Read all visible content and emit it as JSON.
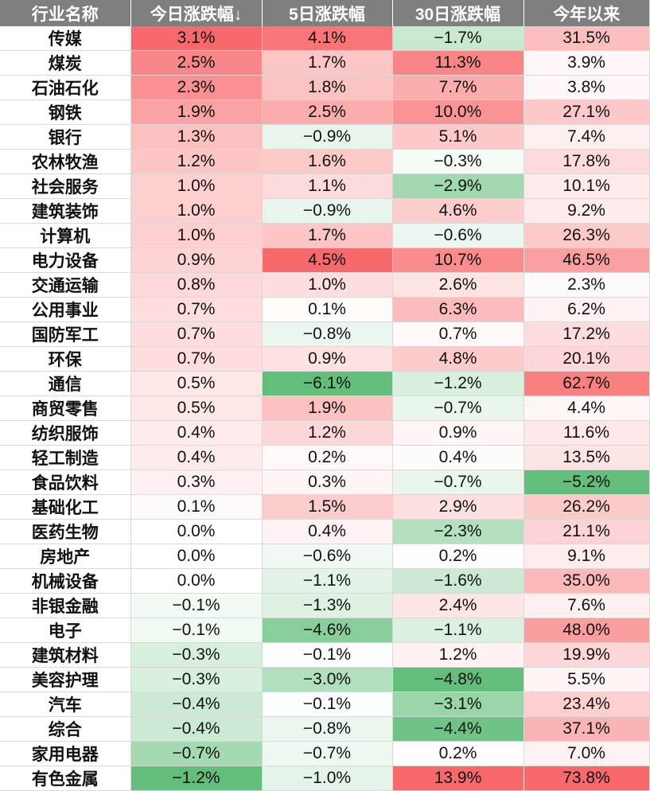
{
  "headers": [
    "行业名称",
    "今日涨跌幅↓",
    "5日涨跌幅",
    "30日涨跌幅",
    "今年以来"
  ],
  "colors": {
    "header_bg": "#7f7f7f",
    "positive_max": "#f8696b",
    "negative_max": "#63be7b",
    "neutral": "#ffffff"
  },
  "rows": [
    {
      "name": "传媒",
      "d1": "3.1%",
      "d5": "4.1%",
      "d30": "−1.7%",
      "ytd": "31.5%"
    },
    {
      "name": "煤炭",
      "d1": "2.5%",
      "d5": "1.7%",
      "d30": "11.3%",
      "ytd": "3.9%"
    },
    {
      "name": "石油石化",
      "d1": "2.3%",
      "d5": "1.8%",
      "d30": "7.7%",
      "ytd": "3.8%"
    },
    {
      "name": "钢铁",
      "d1": "1.9%",
      "d5": "2.5%",
      "d30": "10.0%",
      "ytd": "27.1%"
    },
    {
      "name": "银行",
      "d1": "1.3%",
      "d5": "−0.9%",
      "d30": "5.1%",
      "ytd": "7.4%"
    },
    {
      "name": "农林牧渔",
      "d1": "1.2%",
      "d5": "1.6%",
      "d30": "−0.3%",
      "ytd": "17.8%"
    },
    {
      "name": "社会服务",
      "d1": "1.0%",
      "d5": "1.1%",
      "d30": "−2.9%",
      "ytd": "10.1%"
    },
    {
      "name": "建筑装饰",
      "d1": "1.0%",
      "d5": "−0.9%",
      "d30": "4.6%",
      "ytd": "9.2%"
    },
    {
      "name": "计算机",
      "d1": "1.0%",
      "d5": "1.7%",
      "d30": "−0.6%",
      "ytd": "26.3%"
    },
    {
      "name": "电力设备",
      "d1": "0.9%",
      "d5": "4.5%",
      "d30": "10.7%",
      "ytd": "46.5%"
    },
    {
      "name": "交通运输",
      "d1": "0.8%",
      "d5": "1.0%",
      "d30": "2.6%",
      "ytd": "2.3%"
    },
    {
      "name": "公用事业",
      "d1": "0.7%",
      "d5": "0.1%",
      "d30": "6.3%",
      "ytd": "6.2%"
    },
    {
      "name": "国防军工",
      "d1": "0.7%",
      "d5": "−0.8%",
      "d30": "0.7%",
      "ytd": "17.2%"
    },
    {
      "name": "环保",
      "d1": "0.7%",
      "d5": "0.9%",
      "d30": "4.8%",
      "ytd": "20.1%"
    },
    {
      "name": "通信",
      "d1": "0.5%",
      "d5": "−6.1%",
      "d30": "−1.2%",
      "ytd": "62.7%"
    },
    {
      "name": "商贸零售",
      "d1": "0.5%",
      "d5": "1.9%",
      "d30": "−0.7%",
      "ytd": "4.4%"
    },
    {
      "name": "纺织服饰",
      "d1": "0.4%",
      "d5": "1.2%",
      "d30": "0.9%",
      "ytd": "11.6%"
    },
    {
      "name": "轻工制造",
      "d1": "0.4%",
      "d5": "0.2%",
      "d30": "0.4%",
      "ytd": "13.5%"
    },
    {
      "name": "食品饮料",
      "d1": "0.3%",
      "d5": "0.3%",
      "d30": "−0.7%",
      "ytd": "−5.2%"
    },
    {
      "name": "基础化工",
      "d1": "0.1%",
      "d5": "1.5%",
      "d30": "2.9%",
      "ytd": "26.2%"
    },
    {
      "name": "医药生物",
      "d1": "0.0%",
      "d5": "0.4%",
      "d30": "−2.3%",
      "ytd": "21.1%"
    },
    {
      "name": "房地产",
      "d1": "0.0%",
      "d5": "−0.6%",
      "d30": "0.2%",
      "ytd": "9.1%"
    },
    {
      "name": "机械设备",
      "d1": "0.0%",
      "d5": "−1.1%",
      "d30": "−1.6%",
      "ytd": "35.0%"
    },
    {
      "name": "非银金融",
      "d1": "−0.1%",
      "d5": "−1.3%",
      "d30": "2.4%",
      "ytd": "7.6%"
    },
    {
      "name": "电子",
      "d1": "−0.1%",
      "d5": "−4.6%",
      "d30": "−1.1%",
      "ytd": "48.0%"
    },
    {
      "name": "建筑材料",
      "d1": "−0.3%",
      "d5": "−0.1%",
      "d30": "1.2%",
      "ytd": "19.9%"
    },
    {
      "name": "美容护理",
      "d1": "−0.3%",
      "d5": "−3.0%",
      "d30": "−4.8%",
      "ytd": "5.5%"
    },
    {
      "name": "汽车",
      "d1": "−0.4%",
      "d5": "−0.1%",
      "d30": "−3.1%",
      "ytd": "23.4%"
    },
    {
      "name": "综合",
      "d1": "−0.4%",
      "d5": "−0.8%",
      "d30": "−4.4%",
      "ytd": "37.1%"
    },
    {
      "name": "家用电器",
      "d1": "−0.7%",
      "d5": "−0.7%",
      "d30": "0.2%",
      "ytd": "7.0%"
    },
    {
      "name": "有色金属",
      "d1": "−1.2%",
      "d5": "−1.0%",
      "d30": "13.9%",
      "ytd": "73.8%"
    }
  ]
}
